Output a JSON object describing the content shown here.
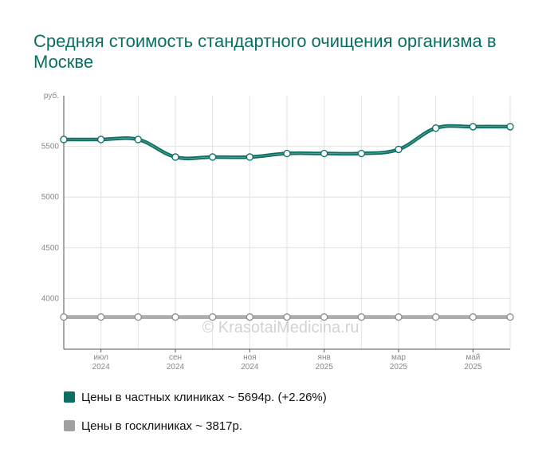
{
  "chart_data": {
    "type": "line",
    "title": "Средняя стоимость стандартного очищения организма в Москве",
    "ylabel": "руб.",
    "ylim": [
      3500,
      6000
    ],
    "yticks": [
      "4000",
      "4500",
      "5000",
      "5500"
    ],
    "xticks": [
      {
        "label": "июл",
        "year": "2024"
      },
      {
        "label": "сен",
        "year": "2024"
      },
      {
        "label": "ноя",
        "year": "2024"
      },
      {
        "label": "янв",
        "year": "2025"
      },
      {
        "label": "мар",
        "year": "2025"
      },
      {
        "label": "май",
        "year": "2025"
      }
    ],
    "x": [
      "2024-05",
      "2024-06",
      "2024-07",
      "2024-08",
      "2024-09",
      "2024-10",
      "2024-11",
      "2024-12",
      "2025-01",
      "2025-02",
      "2025-03",
      "2025-04",
      "2025-05"
    ],
    "series": [
      {
        "name": "Цены в частных клиниках ~ 5694р. (+2.26%)",
        "color": "#0a6e62",
        "values": [
          5568,
          5568,
          5568,
          5395,
          5395,
          5395,
          5430,
          5430,
          5430,
          5470,
          5680,
          5694,
          5694
        ]
      },
      {
        "name": "Цены в госклиниках ~ 3817р.",
        "color": "#a0a0a0",
        "values": [
          3817,
          3817,
          3817,
          3817,
          3817,
          3817,
          3817,
          3817,
          3817,
          3817,
          3817,
          3817,
          3817
        ]
      }
    ],
    "grid": true,
    "legend": "bottom",
    "watermark": "© KrasotaiMedicina.ru"
  }
}
